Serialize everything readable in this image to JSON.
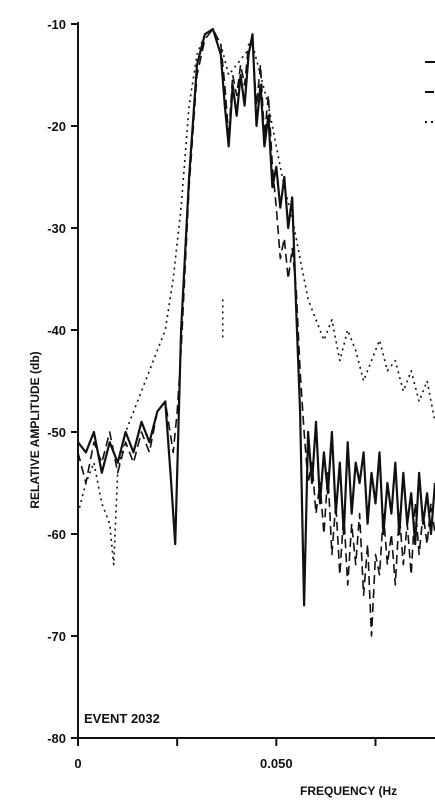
{
  "chart_data": {
    "type": "line",
    "event_label": "EVENT 2032",
    "xlabel": "FREQUENCY (Hz",
    "ylabel": "RELATIVE AMPLITUDE (db)",
    "xlim": [
      0,
      0.09
    ],
    "ylim": [
      -80,
      -10
    ],
    "y_ticks": [
      {
        "value": -10,
        "label": "-10"
      },
      {
        "value": -20,
        "label": "-20"
      },
      {
        "value": -30,
        "label": "-30"
      },
      {
        "value": -40,
        "label": "-40"
      },
      {
        "value": -50,
        "label": "-50"
      },
      {
        "value": -60,
        "label": "-60"
      },
      {
        "value": -70,
        "label": "-70"
      },
      {
        "value": -80,
        "label": "-80"
      }
    ],
    "x_ticks": [
      {
        "value": 0,
        "label": "0"
      },
      {
        "value": 0.025,
        "label": ""
      },
      {
        "value": 0.05,
        "label": "0.050"
      },
      {
        "value": 0.075,
        "label": ""
      }
    ],
    "grid": false,
    "legend": "top-right (cropped)",
    "series": [
      {
        "style": "solid",
        "color": "#111111",
        "x": [
          0,
          0.002,
          0.004,
          0.006,
          0.008,
          0.01,
          0.012,
          0.014,
          0.016,
          0.018,
          0.02,
          0.022,
          0.0235,
          0.0245,
          0.025,
          0.026,
          0.028,
          0.03,
          0.032,
          0.034,
          0.036,
          0.037,
          0.038,
          0.039,
          0.04,
          0.041,
          0.042,
          0.043,
          0.044,
          0.045,
          0.046,
          0.047,
          0.048,
          0.049,
          0.05,
          0.051,
          0.052,
          0.053,
          0.054,
          0.055,
          0.056,
          0.057,
          0.058,
          0.059,
          0.06,
          0.061,
          0.062,
          0.063,
          0.064,
          0.065,
          0.066,
          0.067,
          0.068,
          0.069,
          0.07,
          0.071,
          0.072,
          0.073,
          0.074,
          0.075,
          0.076,
          0.077,
          0.078,
          0.079,
          0.08,
          0.081,
          0.082,
          0.083,
          0.084,
          0.085,
          0.086,
          0.087,
          0.088,
          0.089,
          0.09
        ],
        "y": [
          -51,
          -52,
          -50,
          -54,
          -51,
          -53,
          -50,
          -52,
          -49,
          -51,
          -48,
          -47,
          -55,
          -61,
          -54,
          -40,
          -25,
          -14,
          -11,
          -10.5,
          -13,
          -18,
          -22,
          -16,
          -19,
          -15,
          -18,
          -13,
          -11,
          -20,
          -16,
          -22,
          -19,
          -26,
          -24,
          -28,
          -25,
          -30,
          -27,
          -38,
          -48,
          -67,
          -50,
          -55,
          -49,
          -57,
          -52,
          -56,
          -50,
          -58,
          -53,
          -60,
          -51,
          -58,
          -53,
          -55,
          -52,
          -59,
          -54,
          -57,
          -52,
          -60,
          -55,
          -58,
          -53,
          -60,
          -54,
          -59,
          -56,
          -61,
          -54,
          -59,
          -56,
          -60,
          -55
        ]
      },
      {
        "style": "dashed",
        "color": "#111111",
        "x": [
          0,
          0.002,
          0.004,
          0.006,
          0.008,
          0.01,
          0.012,
          0.014,
          0.016,
          0.018,
          0.02,
          0.022,
          0.024,
          0.025,
          0.026,
          0.028,
          0.03,
          0.032,
          0.034,
          0.036,
          0.037,
          0.038,
          0.039,
          0.04,
          0.041,
          0.042,
          0.043,
          0.044,
          0.045,
          0.046,
          0.047,
          0.048,
          0.049,
          0.05,
          0.051,
          0.052,
          0.053,
          0.054,
          0.055,
          0.056,
          0.057,
          0.058,
          0.059,
          0.06,
          0.061,
          0.062,
          0.063,
          0.064,
          0.065,
          0.066,
          0.067,
          0.068,
          0.069,
          0.07,
          0.071,
          0.072,
          0.073,
          0.074,
          0.075,
          0.076,
          0.077,
          0.078,
          0.079,
          0.08,
          0.081,
          0.082,
          0.083,
          0.084,
          0.085,
          0.086,
          0.087,
          0.088,
          0.089,
          0.09
        ],
        "y": [
          -52,
          -55,
          -51,
          -53,
          -50,
          -54,
          -51,
          -53,
          -50,
          -52,
          -48,
          -47,
          -52,
          -48,
          -42,
          -26,
          -15,
          -11.5,
          -10.5,
          -12,
          -16,
          -21,
          -15,
          -17,
          -14,
          -16,
          -12,
          -12,
          -18,
          -14,
          -21,
          -17,
          -24,
          -28,
          -33,
          -31,
          -35,
          -32,
          -36,
          -44,
          -50,
          -55,
          -53,
          -58,
          -55,
          -60,
          -54,
          -62,
          -57,
          -64,
          -58,
          -65,
          -59,
          -63,
          -58,
          -66,
          -61,
          -70,
          -62,
          -64,
          -58,
          -63,
          -60,
          -65,
          -58,
          -63,
          -59,
          -64,
          -57,
          -62,
          -58,
          -61,
          -57,
          -60
        ]
      },
      {
        "style": "dotted",
        "color": "#111111",
        "x": [
          0,
          0.002,
          0.004,
          0.006,
          0.008,
          0.009,
          0.01,
          0.012,
          0.014,
          0.016,
          0.018,
          0.02,
          0.022,
          0.024,
          0.026,
          0.028,
          0.03,
          0.032,
          0.034,
          0.036,
          0.038,
          0.04,
          0.042,
          0.044,
          0.046,
          0.048,
          0.05,
          0.052,
          0.054,
          0.056,
          0.058,
          0.06,
          0.062,
          0.064,
          0.066,
          0.068,
          0.07,
          0.072,
          0.074,
          0.076,
          0.078,
          0.08,
          0.082,
          0.084,
          0.086,
          0.088,
          0.09
        ],
        "y": [
          -58,
          -55,
          -53,
          -57,
          -59,
          -63,
          -54,
          -50,
          -48,
          -46,
          -44,
          -42,
          -40,
          -35,
          -28,
          -18,
          -13,
          -11,
          -10.5,
          -12,
          -15,
          -14,
          -13,
          -12,
          -15,
          -18,
          -22,
          -26,
          -29,
          -33,
          -37,
          -39,
          -41,
          -39,
          -43,
          -40,
          -42,
          -45,
          -43,
          -41,
          -44,
          -43,
          -46,
          -44,
          -47,
          -45,
          -49
        ]
      }
    ],
    "annotations": [
      {
        "style": "dotted",
        "x": 0.0365,
        "y_from": -37,
        "y_to": -41
      }
    ],
    "legend_marks": [
      {
        "style": "solid"
      },
      {
        "style": "dashed"
      },
      {
        "style": "dotted"
      }
    ]
  }
}
